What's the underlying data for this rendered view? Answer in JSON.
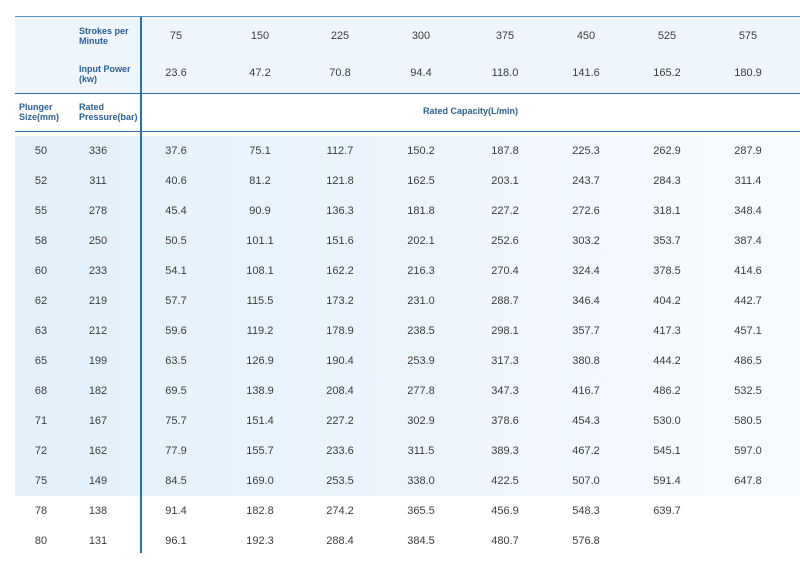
{
  "header": {
    "strokes_label": "Strokes per Minute",
    "power_label": "Input Power (kw)",
    "plunger_label": "Plunger Size(mm)",
    "pressure_label": "Rated Pressure(bar)",
    "capacity_label": "Rated Capacity(L/min)",
    "strokes": [
      "75",
      "150",
      "225",
      "300",
      "375",
      "450",
      "525",
      "575"
    ],
    "power": [
      "23.6",
      "47.2",
      "70.8",
      "94.4",
      "118.0",
      "141.6",
      "165.2",
      "180.9"
    ]
  },
  "rows": [
    {
      "plunger": "50",
      "pressure": "336",
      "values": [
        "37.6",
        "75.1",
        "112.7",
        "150.2",
        "187.8",
        "225.3",
        "262.9",
        "287.9"
      ]
    },
    {
      "plunger": "52",
      "pressure": "311",
      "values": [
        "40.6",
        "81.2",
        "121.8",
        "162.5",
        "203.1",
        "243.7",
        "284.3",
        "311.4"
      ]
    },
    {
      "plunger": "55",
      "pressure": "278",
      "values": [
        "45.4",
        "90.9",
        "136.3",
        "181.8",
        "227.2",
        "272.6",
        "318.1",
        "348.4"
      ]
    },
    {
      "plunger": "58",
      "pressure": "250",
      "values": [
        "50.5",
        "101.1",
        "151.6",
        "202.1",
        "252.6",
        "303.2",
        "353.7",
        "387.4"
      ]
    },
    {
      "plunger": "60",
      "pressure": "233",
      "values": [
        "54.1",
        "108.1",
        "162.2",
        "216.3",
        "270.4",
        "324.4",
        "378.5",
        "414.6"
      ]
    },
    {
      "plunger": "62",
      "pressure": "219",
      "values": [
        "57.7",
        "115.5",
        "173.2",
        "231.0",
        "288.7",
        "346.4",
        "404.2",
        "442.7"
      ]
    },
    {
      "plunger": "63",
      "pressure": "212",
      "values": [
        "59.6",
        "119.2",
        "178.9",
        "238.5",
        "298.1",
        "357.7",
        "417.3",
        "457.1"
      ]
    },
    {
      "plunger": "65",
      "pressure": "199",
      "values": [
        "63.5",
        "126.9",
        "190.4",
        "253.9",
        "317.3",
        "380.8",
        "444.2",
        "486.5"
      ]
    },
    {
      "plunger": "68",
      "pressure": "182",
      "values": [
        "69.5",
        "138.9",
        "208.4",
        "277.8",
        "347.3",
        "416.7",
        "486.2",
        "532.5"
      ]
    },
    {
      "plunger": "71",
      "pressure": "167",
      "values": [
        "75.7",
        "151.4",
        "227.2",
        "302.9",
        "378.6",
        "454.3",
        "530.0",
        "580.5"
      ]
    },
    {
      "plunger": "72",
      "pressure": "162",
      "values": [
        "77.9",
        "155.7",
        "233.6",
        "311.5",
        "389.3",
        "467.2",
        "545.1",
        "597.0"
      ]
    },
    {
      "plunger": "75",
      "pressure": "149",
      "values": [
        "84.5",
        "169.0",
        "253.5",
        "338.0",
        "422.5",
        "507.0",
        "591.4",
        "647.8"
      ]
    },
    {
      "plunger": "78",
      "pressure": "138",
      "values": [
        "91.4",
        "182.8",
        "274.2",
        "365.5",
        "456.9",
        "548.3",
        "639.7",
        ""
      ]
    },
    {
      "plunger": "80",
      "pressure": "131",
      "values": [
        "96.1",
        "192.3",
        "288.4",
        "384.5",
        "480.7",
        "576.8",
        "",
        ""
      ]
    }
  ]
}
